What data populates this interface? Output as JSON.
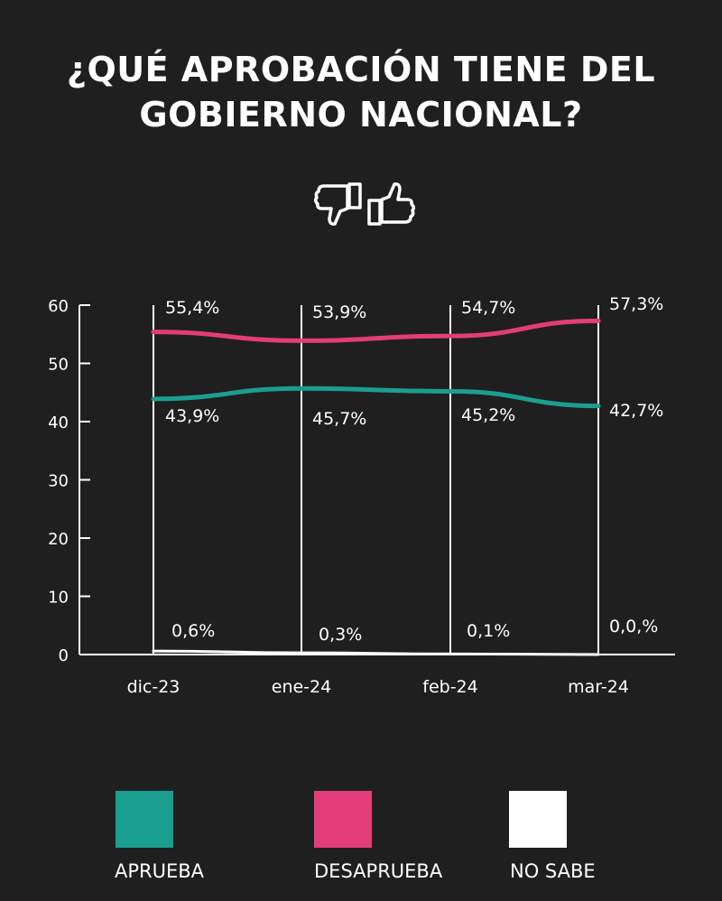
{
  "title_lines": [
    "¿QUÉ APROBACIÓN TIENE DEL",
    "GOBIERNO NACIONAL?"
  ],
  "icons": [
    "thumbs-down-icon",
    "thumbs-up-icon"
  ],
  "colors": {
    "background": "#1f1f1f",
    "aprueba": "#1a9e8f",
    "desaprueba": "#e23d79",
    "no_sabe": "#ffffff",
    "text": "#ffffff"
  },
  "chart_data": {
    "type": "line",
    "categories": [
      "dic-23",
      "ene-24",
      "feb-24",
      "mar-24"
    ],
    "y_ticks": [
      0,
      10,
      20,
      30,
      40,
      50,
      60
    ],
    "ylim": [
      0,
      60
    ],
    "grid": false,
    "legend_position": "bottom",
    "series": [
      {
        "key": "aprueba",
        "name": "APRUEBA",
        "values": [
          43.9,
          45.7,
          45.2,
          42.7
        ],
        "labels": [
          "43,9%",
          "45,7%",
          "45,2%",
          "42,7%"
        ]
      },
      {
        "key": "desaprueba",
        "name": "DESAPRUEBA",
        "values": [
          55.4,
          53.9,
          54.7,
          57.3
        ],
        "labels": [
          "55,4%",
          "53,9%",
          "54,7%",
          "57,3%"
        ]
      },
      {
        "key": "no_sabe",
        "name": "NO SABE",
        "values": [
          0.6,
          0.3,
          0.1,
          0.0
        ],
        "labels": [
          "0,6%",
          "0,3%",
          "0,1%",
          "0,0,%"
        ]
      }
    ]
  }
}
